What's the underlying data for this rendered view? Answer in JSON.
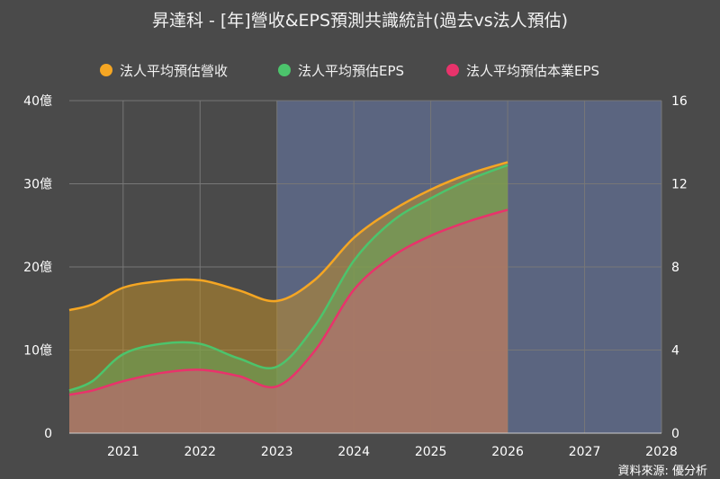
{
  "chart_data": {
    "type": "area",
    "title": "昇達科 - [年]營收&EPS預測共識統計(過去vs法人預估)",
    "source": "資料來源: 優分析",
    "x_ticks": [
      "2021",
      "2022",
      "2023",
      "2024",
      "2025",
      "2026",
      "2027",
      "2028"
    ],
    "xlim": [
      2020.3,
      2028
    ],
    "forecast_start": 2023,
    "y_left": {
      "ticks": [
        "0",
        "10億",
        "20億",
        "30億",
        "40億"
      ],
      "range": [
        0,
        40
      ],
      "unit": "億"
    },
    "y_right": {
      "ticks": [
        "0",
        "4",
        "8",
        "12",
        "16"
      ],
      "range": [
        0,
        16
      ]
    },
    "grid": true,
    "legend_position": "top",
    "series": [
      {
        "name": "法人平均預估營收",
        "axis": "left",
        "color": "#f5a623",
        "fill": "rgba(190,140,40,0.55)",
        "points": [
          [
            2020.3,
            14.8
          ],
          [
            2020.6,
            15.5
          ],
          [
            2021,
            17.5
          ],
          [
            2021.5,
            18.3
          ],
          [
            2022,
            18.4
          ],
          [
            2022.5,
            17.2
          ],
          [
            2023,
            15.9
          ],
          [
            2023.5,
            18.5
          ],
          [
            2024,
            23.5
          ],
          [
            2024.5,
            26.8
          ],
          [
            2025,
            29.3
          ],
          [
            2025.5,
            31.2
          ],
          [
            2026,
            32.6
          ]
        ]
      },
      {
        "name": "法人平均預估EPS",
        "axis": "right",
        "color": "#4cc46c",
        "fill": "rgba(100,170,90,0.55)",
        "points": [
          [
            2020.3,
            2.05
          ],
          [
            2020.6,
            2.5
          ],
          [
            2021,
            3.8
          ],
          [
            2021.5,
            4.3
          ],
          [
            2022,
            4.3
          ],
          [
            2022.5,
            3.6
          ],
          [
            2023,
            3.2
          ],
          [
            2023.5,
            5.2
          ],
          [
            2024,
            8.3
          ],
          [
            2024.5,
            10.2
          ],
          [
            2025,
            11.3
          ],
          [
            2025.5,
            12.2
          ],
          [
            2026,
            12.9
          ]
        ]
      },
      {
        "name": "法人平均預估本業EPS",
        "axis": "right",
        "color": "#e8336b",
        "fill": "rgba(180,110,110,0.75)",
        "points": [
          [
            2020.3,
            1.85
          ],
          [
            2020.6,
            2.05
          ],
          [
            2021,
            2.5
          ],
          [
            2021.5,
            2.9
          ],
          [
            2022,
            3.05
          ],
          [
            2022.5,
            2.75
          ],
          [
            2023,
            2.25
          ],
          [
            2023.5,
            4.0
          ],
          [
            2024,
            6.9
          ],
          [
            2024.5,
            8.5
          ],
          [
            2025,
            9.5
          ],
          [
            2025.5,
            10.2
          ],
          [
            2026,
            10.75
          ]
        ]
      }
    ],
    "colors": {
      "background": "#4a4a4a",
      "forecast_region": "#5b6580",
      "grid": "#777777",
      "axis_line": "#cfcfcf"
    }
  }
}
